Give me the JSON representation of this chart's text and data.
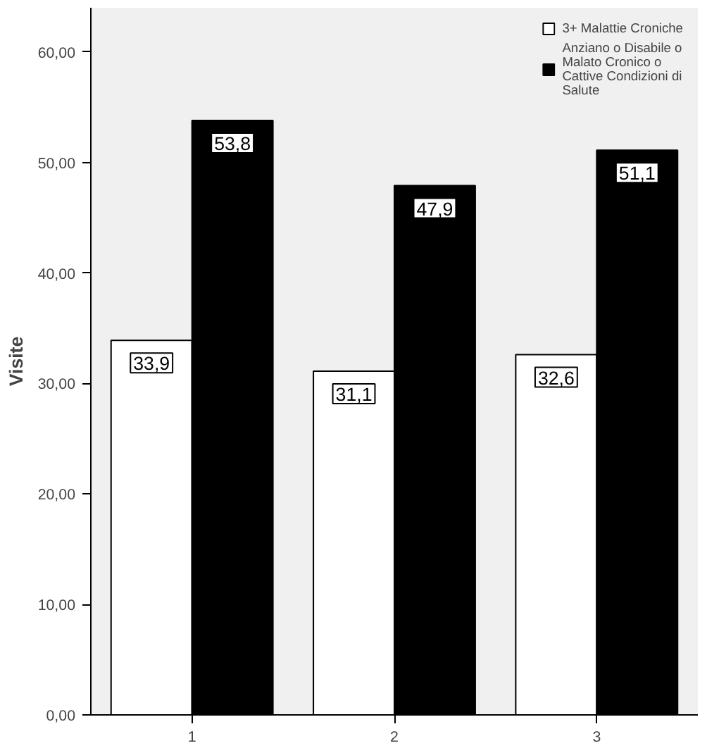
{
  "chart_data": {
    "type": "bar",
    "ylabel": "Visite",
    "categories": [
      "1",
      "2",
      "3"
    ],
    "series": [
      {
        "name": "3+ Malattie Croniche",
        "color": "#ffffff",
        "values": [
          33.9,
          31.1,
          32.6
        ],
        "value_labels": [
          "33,9",
          "31,1",
          "32,6"
        ]
      },
      {
        "name": "Anziano o Disabile o Malato Cronico o Cattive Condizioni di Salute",
        "color": "#000000",
        "values": [
          53.8,
          47.9,
          51.1
        ],
        "value_labels": [
          "53,8",
          "47,9",
          "51,1"
        ]
      }
    ],
    "ylim": [
      0,
      64
    ],
    "yticks": [
      {
        "value": 0,
        "label": "0,00"
      },
      {
        "value": 10,
        "label": "10,00"
      },
      {
        "value": 20,
        "label": "20,00"
      },
      {
        "value": 30,
        "label": "30,00"
      },
      {
        "value": 40,
        "label": "40,00"
      },
      {
        "value": 50,
        "label": "50,00"
      },
      {
        "value": 60,
        "label": "60,00"
      }
    ],
    "grid": false,
    "legend": "top right"
  }
}
